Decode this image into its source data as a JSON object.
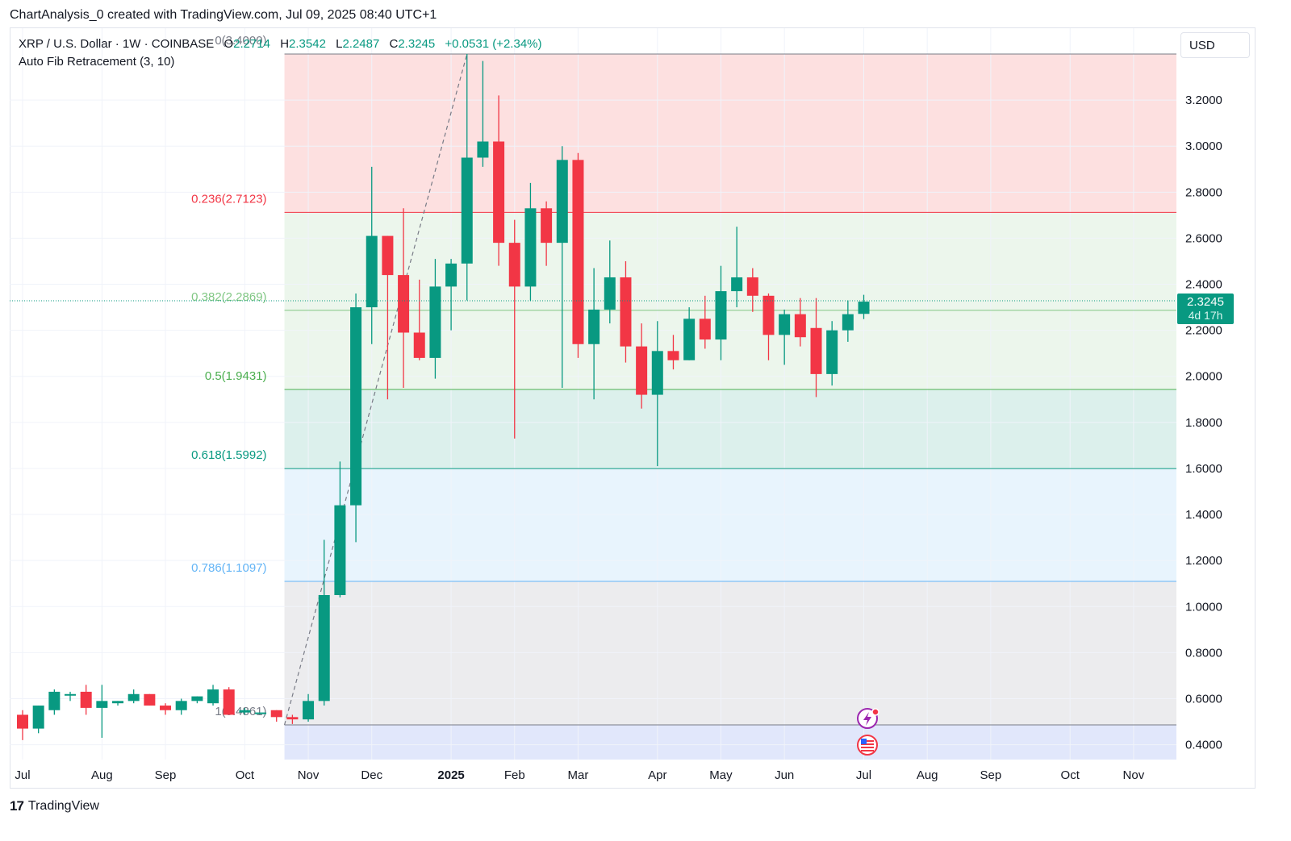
{
  "header": {
    "text": "ChartAnalysis_0 created with TradingView.com, Jul 09, 2025 08:40 UTC+1"
  },
  "symbol": {
    "name": "XRP / U.S. Dollar · 1W · COINBASE",
    "open_label": "O",
    "open": "2.2714",
    "high_label": "H",
    "high": "2.3542",
    "low_label": "L",
    "low": "2.2487",
    "close_label": "C",
    "close": "2.3245",
    "change": "+0.0531 (+2.34%)"
  },
  "indicator": {
    "name": "Auto Fib Retracement (3, 10)"
  },
  "currency_button": {
    "label": "USD"
  },
  "price_tag": {
    "price": "2.3245",
    "countdown": "4d 17h"
  },
  "footer": {
    "logo_mark": "17",
    "logo_text": "TradingView"
  },
  "colors": {
    "up": "#089981",
    "down": "#f23645",
    "grid": "#f0f3fa",
    "text": "#131722"
  },
  "icons": [
    "lightning-event-icon",
    "us-flag-event-icon",
    "tradingview-logo-icon"
  ],
  "chart_data": {
    "type": "candlestick",
    "y_axis": {
      "min": 0.35,
      "max": 3.41,
      "ticks": [
        "3.2000",
        "3.0000",
        "2.8000",
        "2.6000",
        "2.4000",
        "2.2000",
        "2.0000",
        "1.8000",
        "1.6000",
        "1.4000",
        "1.2000",
        "1.0000",
        "0.8000",
        "0.6000",
        "0.4000"
      ]
    },
    "x_axis": {
      "ticks": [
        {
          "label": "Jul",
          "week": 0
        },
        {
          "label": "Aug",
          "week": 5
        },
        {
          "label": "Sep",
          "week": 9
        },
        {
          "label": "Oct",
          "week": 14
        },
        {
          "label": "Nov",
          "week": 18
        },
        {
          "label": "Dec",
          "week": 22
        },
        {
          "label": "2025",
          "week": 27,
          "bold": true
        },
        {
          "label": "Feb",
          "week": 31
        },
        {
          "label": "Mar",
          "week": 35
        },
        {
          "label": "Apr",
          "week": 40
        },
        {
          "label": "May",
          "week": 44
        },
        {
          "label": "Jun",
          "week": 48
        },
        {
          "label": "Jul",
          "week": 53
        },
        {
          "label": "Aug",
          "week": 57
        },
        {
          "label": "Sep",
          "week": 61
        },
        {
          "label": "Oct",
          "week": 66
        },
        {
          "label": "Nov",
          "week": 70
        }
      ]
    },
    "fib_levels": [
      {
        "ratio": "0",
        "price": 3.4,
        "label": "0(3.4000)",
        "color": "#787b86"
      },
      {
        "ratio": "0.236",
        "price": 2.7123,
        "label": "0.236(2.7123)",
        "color": "#f23645"
      },
      {
        "ratio": "0.382",
        "price": 2.2869,
        "label": "0.382(2.2869)",
        "color": "#81c784"
      },
      {
        "ratio": "0.5",
        "price": 1.9431,
        "label": "0.5(1.9431)",
        "color": "#4caf50"
      },
      {
        "ratio": "0.618",
        "price": 1.5992,
        "label": "0.618(1.5992)",
        "color": "#089981"
      },
      {
        "ratio": "0.786",
        "price": 1.1097,
        "label": "0.786(1.1097)",
        "color": "#64b5f6"
      },
      {
        "ratio": "1",
        "price": 0.4861,
        "label": "1(0.4861)",
        "color": "#787b86"
      }
    ],
    "fib_start_week": 16.5,
    "trend_line": {
      "from": {
        "week": 16.5,
        "price": 0.4861
      },
      "to": {
        "week": 28,
        "price": 3.4
      }
    },
    "candles": [
      {
        "o": 0.53,
        "h": 0.55,
        "l": 0.42,
        "c": 0.47
      },
      {
        "o": 0.47,
        "h": 0.57,
        "l": 0.45,
        "c": 0.57
      },
      {
        "o": 0.55,
        "h": 0.64,
        "l": 0.53,
        "c": 0.63
      },
      {
        "o": 0.62,
        "h": 0.63,
        "l": 0.59,
        "c": 0.62
      },
      {
        "o": 0.63,
        "h": 0.66,
        "l": 0.53,
        "c": 0.56
      },
      {
        "o": 0.56,
        "h": 0.66,
        "l": 0.43,
        "c": 0.59
      },
      {
        "o": 0.58,
        "h": 0.59,
        "l": 0.57,
        "c": 0.59
      },
      {
        "o": 0.59,
        "h": 0.64,
        "l": 0.58,
        "c": 0.62
      },
      {
        "o": 0.62,
        "h": 0.62,
        "l": 0.57,
        "c": 0.57
      },
      {
        "o": 0.57,
        "h": 0.58,
        "l": 0.53,
        "c": 0.55
      },
      {
        "o": 0.55,
        "h": 0.6,
        "l": 0.53,
        "c": 0.59
      },
      {
        "o": 0.59,
        "h": 0.61,
        "l": 0.58,
        "c": 0.61
      },
      {
        "o": 0.58,
        "h": 0.66,
        "l": 0.57,
        "c": 0.64
      },
      {
        "o": 0.64,
        "h": 0.65,
        "l": 0.53,
        "c": 0.53
      },
      {
        "o": 0.54,
        "h": 0.56,
        "l": 0.53,
        "c": 0.55
      },
      {
        "o": 0.54,
        "h": 0.54,
        "l": 0.54,
        "c": 0.54
      },
      {
        "o": 0.55,
        "h": 0.55,
        "l": 0.5,
        "c": 0.52
      },
      {
        "o": 0.52,
        "h": 0.53,
        "l": 0.49,
        "c": 0.51
      },
      {
        "o": 0.51,
        "h": 0.62,
        "l": 0.5,
        "c": 0.59
      },
      {
        "o": 0.59,
        "h": 1.29,
        "l": 0.57,
        "c": 1.05
      },
      {
        "o": 1.05,
        "h": 1.63,
        "l": 1.04,
        "c": 1.44
      },
      {
        "o": 1.44,
        "h": 2.36,
        "l": 1.28,
        "c": 2.3
      },
      {
        "o": 2.3,
        "h": 2.91,
        "l": 2.14,
        "c": 2.61
      },
      {
        "o": 2.61,
        "h": 2.61,
        "l": 1.9,
        "c": 2.44
      },
      {
        "o": 2.44,
        "h": 2.73,
        "l": 1.95,
        "c": 2.19
      },
      {
        "o": 2.19,
        "h": 2.42,
        "l": 2.07,
        "c": 2.08
      },
      {
        "o": 2.08,
        "h": 2.51,
        "l": 1.99,
        "c": 2.39
      },
      {
        "o": 2.39,
        "h": 2.51,
        "l": 2.2,
        "c": 2.49
      },
      {
        "o": 2.49,
        "h": 3.4,
        "l": 2.33,
        "c": 2.95
      },
      {
        "o": 2.95,
        "h": 3.37,
        "l": 2.91,
        "c": 3.02
      },
      {
        "o": 3.02,
        "h": 3.22,
        "l": 2.48,
        "c": 2.58
      },
      {
        "o": 2.58,
        "h": 2.68,
        "l": 1.73,
        "c": 2.39
      },
      {
        "o": 2.39,
        "h": 2.84,
        "l": 2.33,
        "c": 2.73
      },
      {
        "o": 2.73,
        "h": 2.76,
        "l": 2.48,
        "c": 2.58
      },
      {
        "o": 2.58,
        "h": 3.0,
        "l": 1.95,
        "c": 2.94
      },
      {
        "o": 2.94,
        "h": 2.97,
        "l": 2.08,
        "c": 2.14
      },
      {
        "o": 2.14,
        "h": 2.47,
        "l": 1.9,
        "c": 2.29
      },
      {
        "o": 2.29,
        "h": 2.59,
        "l": 2.23,
        "c": 2.43
      },
      {
        "o": 2.43,
        "h": 2.5,
        "l": 2.06,
        "c": 2.13
      },
      {
        "o": 2.13,
        "h": 2.23,
        "l": 1.86,
        "c": 1.92
      },
      {
        "o": 1.92,
        "h": 2.24,
        "l": 1.61,
        "c": 2.11
      },
      {
        "o": 2.11,
        "h": 2.18,
        "l": 2.03,
        "c": 2.07
      },
      {
        "o": 2.07,
        "h": 2.3,
        "l": 2.07,
        "c": 2.25
      },
      {
        "o": 2.25,
        "h": 2.35,
        "l": 2.12,
        "c": 2.16
      },
      {
        "o": 2.16,
        "h": 2.48,
        "l": 2.07,
        "c": 2.37
      },
      {
        "o": 2.37,
        "h": 2.65,
        "l": 2.3,
        "c": 2.43
      },
      {
        "o": 2.43,
        "h": 2.47,
        "l": 2.28,
        "c": 2.35
      },
      {
        "o": 2.35,
        "h": 2.36,
        "l": 2.07,
        "c": 2.18
      },
      {
        "o": 2.18,
        "h": 2.29,
        "l": 2.05,
        "c": 2.27
      },
      {
        "o": 2.27,
        "h": 2.34,
        "l": 2.13,
        "c": 2.17
      },
      {
        "o": 2.21,
        "h": 2.34,
        "l": 1.91,
        "c": 2.01
      },
      {
        "o": 2.01,
        "h": 2.24,
        "l": 1.96,
        "c": 2.2
      },
      {
        "o": 2.2,
        "h": 2.33,
        "l": 2.15,
        "c": 2.27
      },
      {
        "o": 2.2714,
        "h": 2.3542,
        "l": 2.2487,
        "c": 2.3245
      }
    ]
  }
}
